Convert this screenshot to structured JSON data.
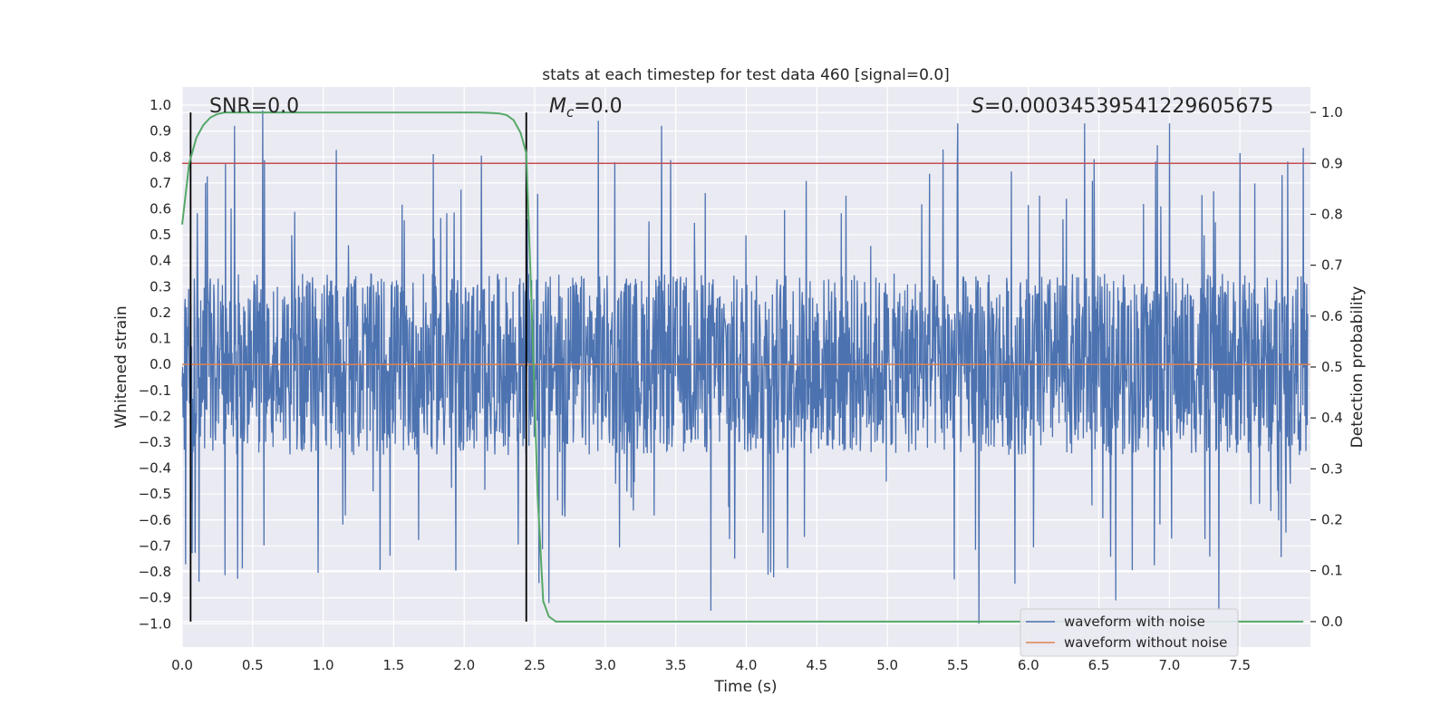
{
  "chart_data": {
    "type": "line",
    "title": "stats at each timestep for test data 460 [signal=0.0]",
    "xlabel": "Time (s)",
    "ylabel_left": "Whitened strain",
    "ylabel_right": "Detection probability",
    "xlim": [
      0.0,
      8.0
    ],
    "ylim_left": [
      -1.09,
      1.07
    ],
    "ylim_right": [
      -0.05,
      1.05
    ],
    "x_ticks": [
      "0.0",
      "0.5",
      "1.0",
      "1.5",
      "2.0",
      "2.5",
      "3.0",
      "3.5",
      "4.0",
      "4.5",
      "5.0",
      "5.5",
      "6.0",
      "6.5",
      "7.0",
      "7.5"
    ],
    "x_tick_values": [
      0.0,
      0.5,
      1.0,
      1.5,
      2.0,
      2.5,
      3.0,
      3.5,
      4.0,
      4.5,
      5.0,
      5.5,
      6.0,
      6.5,
      7.0,
      7.5
    ],
    "y_left_ticks": [
      "1.0",
      "0.9",
      "0.8",
      "0.7",
      "0.6",
      "0.5",
      "0.4",
      "0.3",
      "0.2",
      "0.1",
      "0.0",
      "−0.1",
      "−0.2",
      "−0.3",
      "−0.4",
      "−0.5",
      "−0.6",
      "−0.7",
      "−0.8",
      "−0.9",
      "−1.0"
    ],
    "y_left_tick_values": [
      1.0,
      0.9,
      0.8,
      0.7,
      0.6,
      0.5,
      0.4,
      0.3,
      0.2,
      0.1,
      0.0,
      -0.1,
      -0.2,
      -0.3,
      -0.4,
      -0.5,
      -0.6,
      -0.7,
      -0.8,
      -0.9,
      -1.0
    ],
    "y_right_ticks": [
      "1.0",
      "0.9",
      "0.8",
      "0.7",
      "0.6",
      "0.5",
      "0.4",
      "0.3",
      "0.2",
      "0.1",
      "0.0"
    ],
    "y_right_tick_values": [
      1.0,
      0.9,
      0.8,
      0.7,
      0.6,
      0.5,
      0.4,
      0.3,
      0.2,
      0.1,
      0.0
    ],
    "annotations": {
      "snr": "SNR=0.0",
      "mc_symbol": "M",
      "mc_sub": "c",
      "mc_value": "=0.0",
      "s_symbol": "S",
      "s_value": "=0.00034539541229605675"
    },
    "vertical_lines_x": [
      0.06,
      2.44
    ],
    "threshold_line_right": 0.9,
    "series": [
      {
        "name": "waveform with noise",
        "color": "#4c72b0",
        "axis": "left",
        "description": "dense whitened noise, mostly within ±0.35 with spikes up to about ±0.95",
        "envelope_typical": 0.35,
        "peaks": [
          {
            "x": 0.57,
            "y": 0.98
          },
          {
            "x": 0.37,
            "y": 0.92
          },
          {
            "x": 3.75,
            "y": -0.95
          },
          {
            "x": 5.65,
            "y": -1.0
          },
          {
            "x": 7.35,
            "y": -0.95
          },
          {
            "x": 6.62,
            "y": -0.91
          },
          {
            "x": 2.95,
            "y": 0.94
          },
          {
            "x": 3.4,
            "y": 0.92
          },
          {
            "x": 5.5,
            "y": 0.93
          },
          {
            "x": 6.4,
            "y": 0.93
          },
          {
            "x": 7.0,
            "y": 0.93
          },
          {
            "x": 2.6,
            "y": -0.92
          }
        ]
      },
      {
        "name": "waveform without noise",
        "color": "#dd8452",
        "axis": "left",
        "values_constant": 0.0
      },
      {
        "name": "detection probability",
        "color": "#55a868",
        "axis": "right",
        "x": [
          0.0,
          0.05,
          0.1,
          0.15,
          0.2,
          0.25,
          0.3,
          0.35,
          0.4,
          0.5,
          1.0,
          1.5,
          2.0,
          2.1,
          2.2,
          2.25,
          2.3,
          2.35,
          2.4,
          2.44,
          2.48,
          2.52,
          2.56,
          2.6,
          2.65,
          2.7,
          3.0,
          4.0,
          5.0,
          6.0,
          7.0,
          7.95
        ],
        "y": [
          0.78,
          0.9,
          0.95,
          0.975,
          0.99,
          0.997,
          1.0,
          1.0,
          1.0,
          1.0,
          1.0,
          1.0,
          1.0,
          1.0,
          0.999,
          0.998,
          0.995,
          0.985,
          0.96,
          0.92,
          0.6,
          0.25,
          0.04,
          0.01,
          0.0,
          0.0,
          0.0,
          0.0,
          0.0,
          0.0,
          0.0,
          0.0
        ]
      },
      {
        "name": "threshold",
        "color": "#c44e52",
        "axis": "right",
        "values_constant": 0.9
      }
    ],
    "legend": {
      "placement": "lower-right",
      "entries": [
        {
          "label": "waveform with noise",
          "color": "#4c72b0"
        },
        {
          "label": "waveform without noise",
          "color": "#dd8452"
        }
      ]
    },
    "style": {
      "background": "#eaeaf2",
      "grid": true,
      "grid_color": "#ffffff"
    }
  }
}
